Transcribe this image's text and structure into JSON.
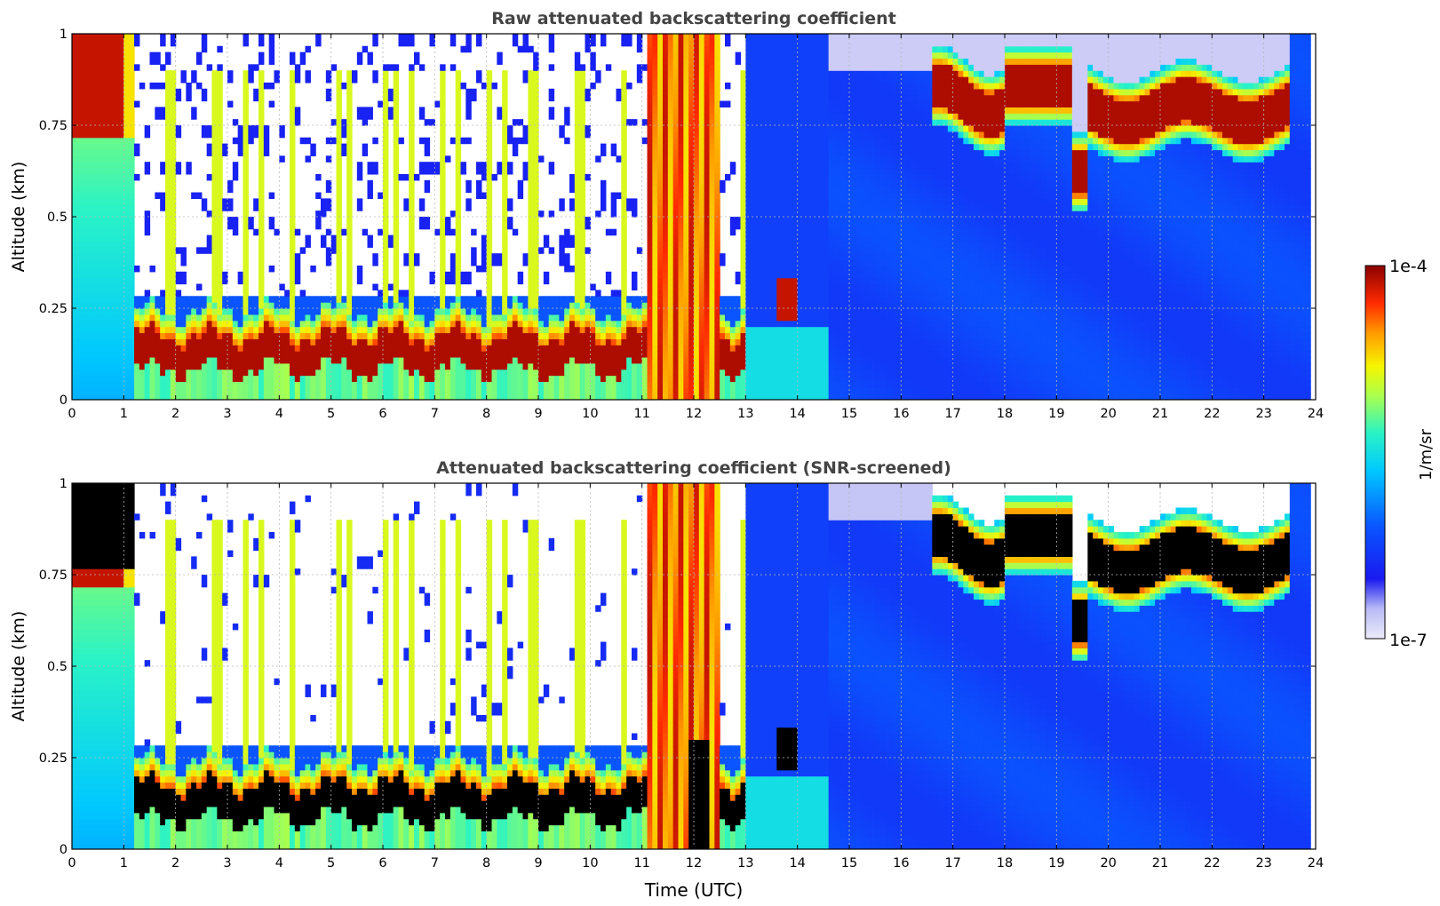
{
  "chart_data": [
    {
      "type": "heatmap",
      "title": "Raw attenuated backscattering coefficient",
      "xlabel": "",
      "ylabel": "Altitude (km)",
      "xlim": [
        0,
        24
      ],
      "ylim": [
        0,
        1
      ],
      "x_ticks": [
        "0",
        "1",
        "2",
        "3",
        "4",
        "5",
        "6",
        "7",
        "8",
        "9",
        "10",
        "11",
        "12",
        "13",
        "14",
        "15",
        "16",
        "17",
        "18",
        "19",
        "20",
        "21",
        "22",
        "23",
        "24"
      ],
      "y_ticks": [
        "0",
        "0.25",
        "0.5",
        "0.75",
        "1"
      ],
      "grid": true,
      "screened": false,
      "colorscale": "jet",
      "layers": [
        {
          "name": "night boundary layer",
          "t_start": 1.2,
          "t_end": 13.0,
          "alt_center": 0.13,
          "thickness": 0.08,
          "level": "high"
        },
        {
          "name": "morning cloud",
          "t_start": 0.0,
          "t_end": 1.2,
          "alt_center": 0.9,
          "thickness": 0.2,
          "level": "high"
        },
        {
          "name": "afternoon cloud",
          "t_start": 16.6,
          "t_end": 23.5,
          "alt_center": 0.8,
          "thickness": 0.12,
          "level": "high"
        },
        {
          "name": "precipitation column",
          "t_start": 11.1,
          "t_end": 12.5,
          "alt_center": 0.5,
          "thickness": 1.0,
          "level": "high"
        }
      ]
    },
    {
      "type": "heatmap",
      "title": "Attenuated backscattering coefficient (SNR-screened)",
      "xlabel": "Time (UTC)",
      "ylabel": "Altitude (km)",
      "xlim": [
        0,
        24
      ],
      "ylim": [
        0,
        1
      ],
      "x_ticks": [
        "0",
        "1",
        "2",
        "3",
        "4",
        "5",
        "6",
        "7",
        "8",
        "9",
        "10",
        "11",
        "12",
        "13",
        "14",
        "15",
        "16",
        "17",
        "18",
        "19",
        "20",
        "21",
        "22",
        "23",
        "24"
      ],
      "y_ticks": [
        "0",
        "0.25",
        "0.5",
        "0.75",
        "1"
      ],
      "grid": true,
      "screened": true,
      "colorscale": "jet",
      "layers": [
        {
          "name": "night boundary layer",
          "t_start": 1.2,
          "t_end": 13.0,
          "alt_center": 0.13,
          "thickness": 0.08,
          "level": "saturated"
        },
        {
          "name": "morning cloud",
          "t_start": 0.0,
          "t_end": 1.2,
          "alt_center": 0.9,
          "thickness": 0.2,
          "level": "saturated"
        },
        {
          "name": "afternoon cloud",
          "t_start": 16.6,
          "t_end": 23.5,
          "alt_center": 0.8,
          "thickness": 0.12,
          "level": "saturated"
        },
        {
          "name": "precipitation column",
          "t_start": 11.1,
          "t_end": 12.5,
          "alt_center": 0.5,
          "thickness": 1.0,
          "level": "high"
        }
      ]
    }
  ],
  "colorbar": {
    "label": "1/m/sr",
    "max_label": "1e-4",
    "min_label": "1e-7",
    "scale": "log"
  },
  "colors": {
    "title": "#444444",
    "saturated": "#000000"
  }
}
